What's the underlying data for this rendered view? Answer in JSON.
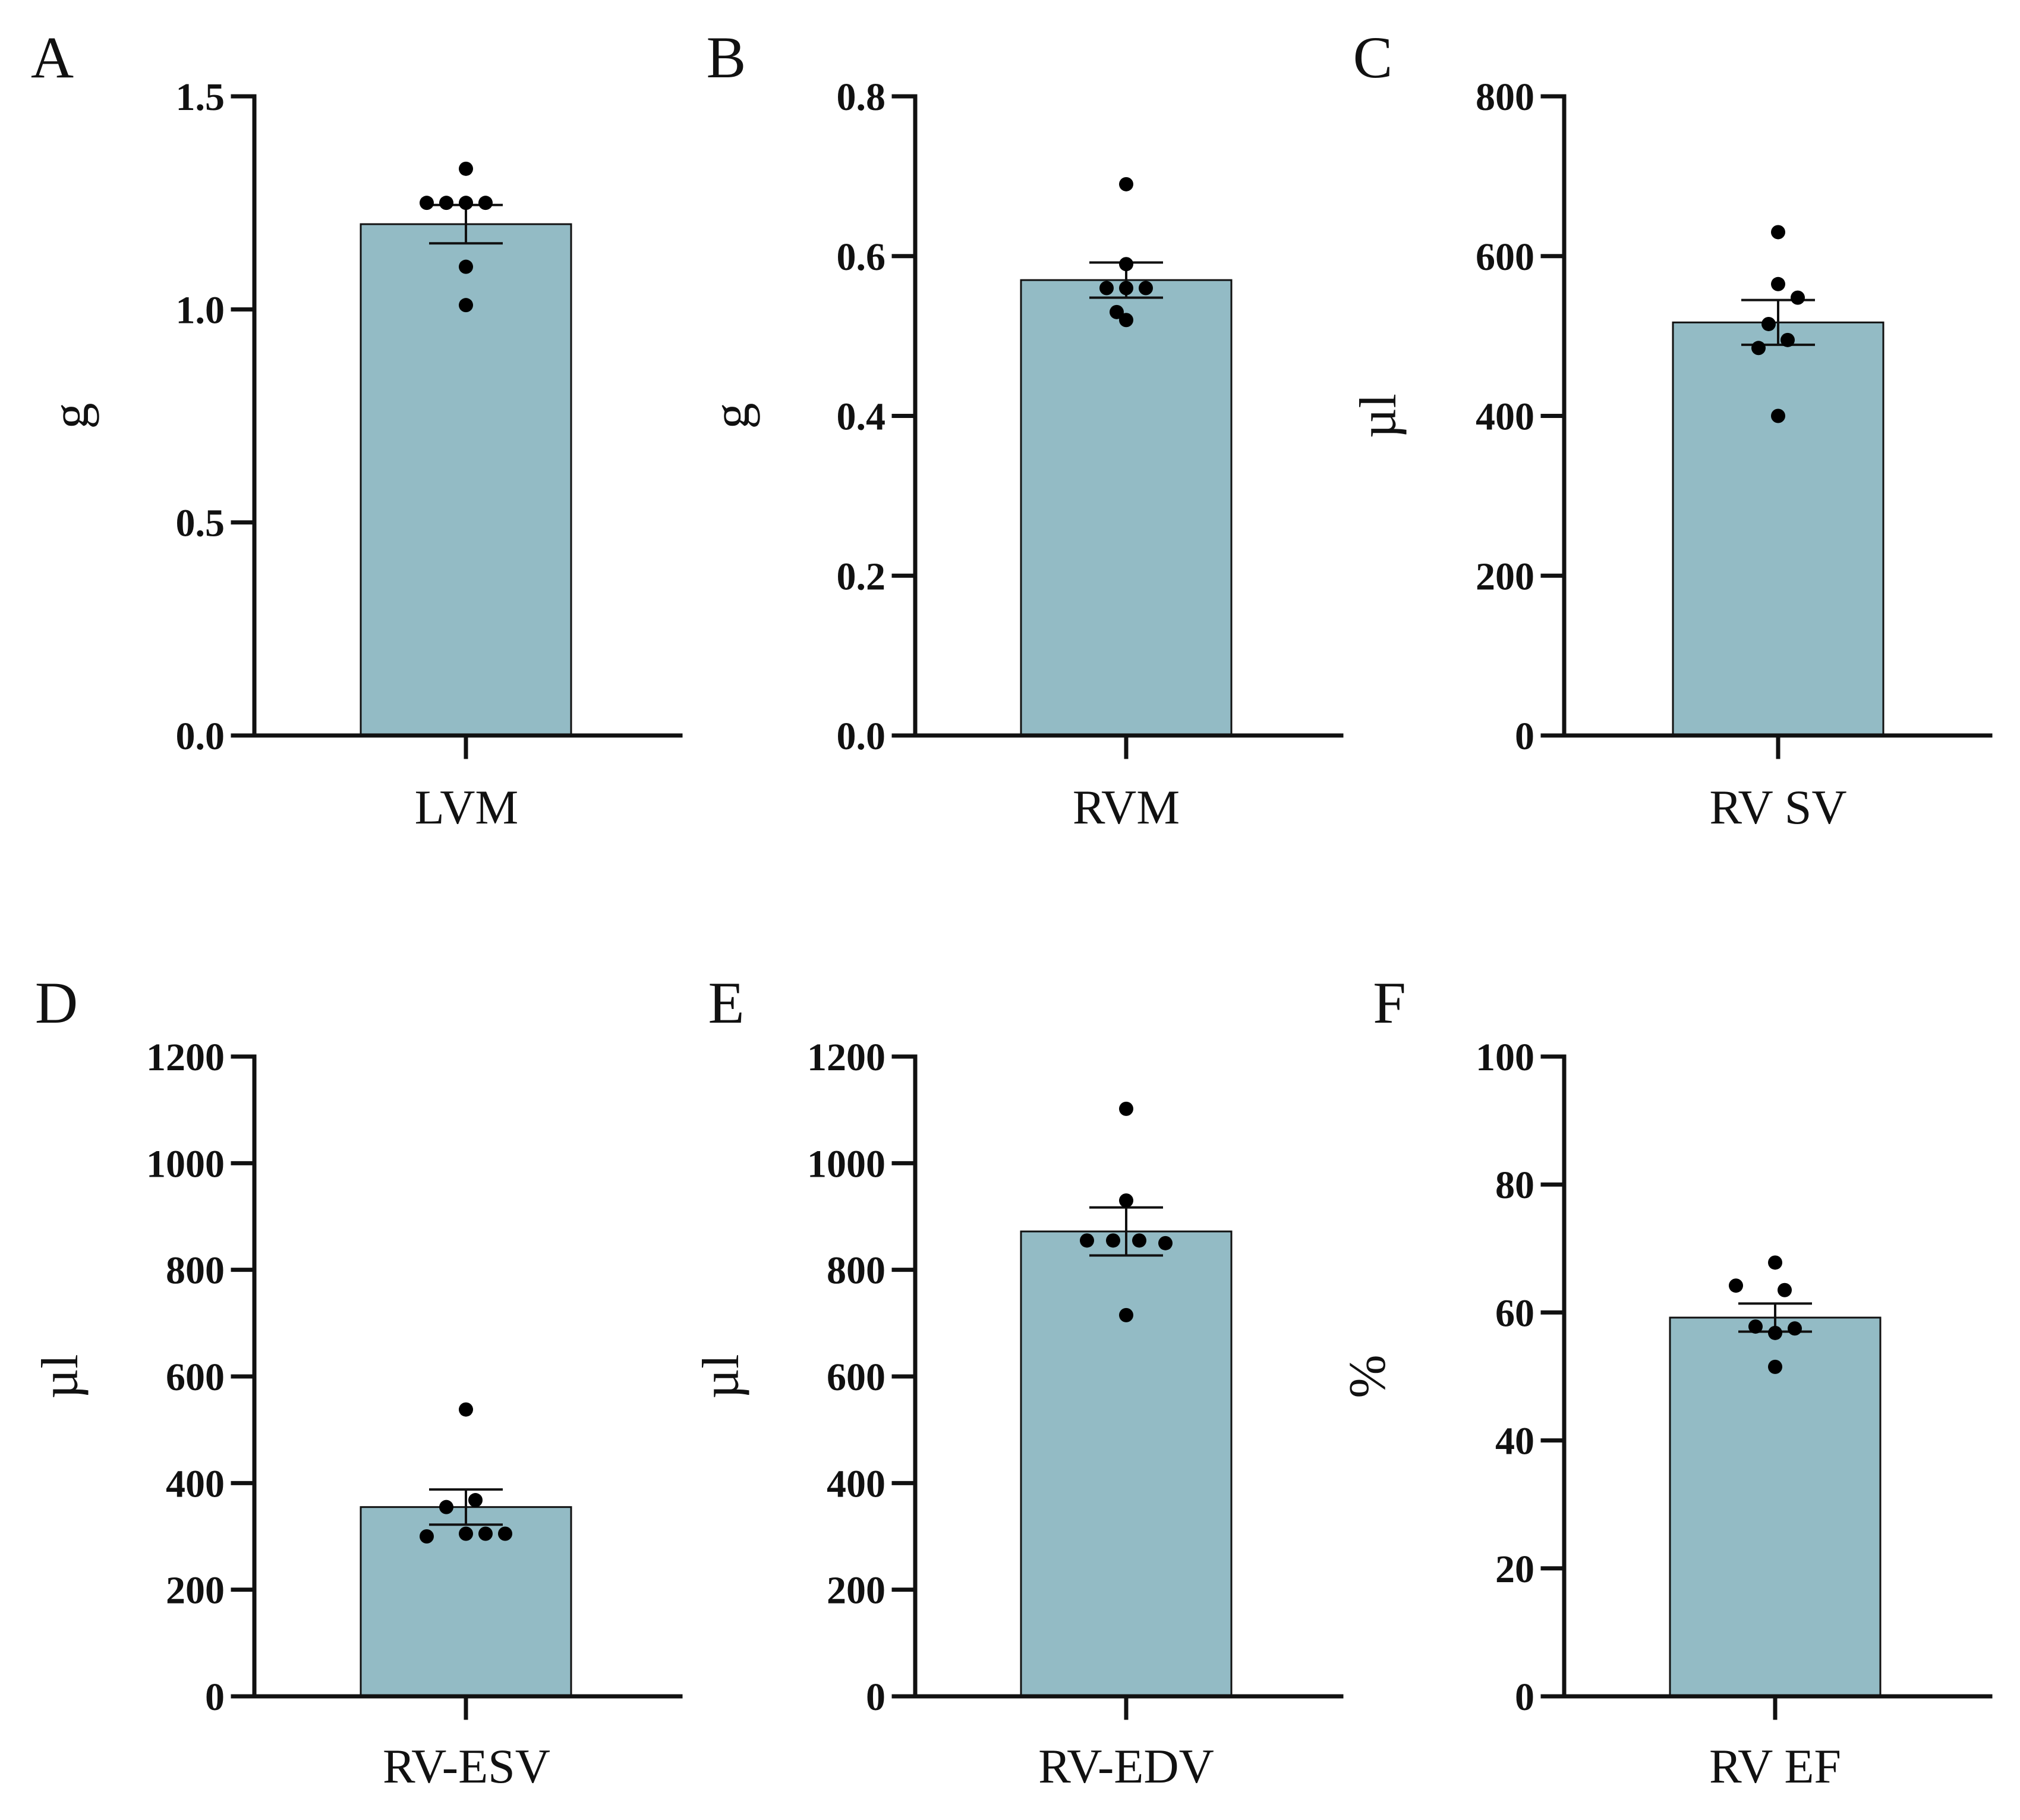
{
  "figure": {
    "bar_color": "#93bbc5",
    "ink_color": "#111111"
  },
  "chart_data": [
    {
      "type": "bar",
      "panel": "A",
      "categories": [
        "LVM"
      ],
      "values": [
        1.2
      ],
      "error": [
        0.045
      ],
      "points": [
        1.33,
        1.25,
        1.25,
        1.25,
        1.25,
        1.1,
        1.01
      ],
      "ylabel": "g",
      "ylim": [
        0,
        1.5
      ],
      "yticks": [
        "0.0",
        "0.5",
        "1.0",
        "1.5"
      ]
    },
    {
      "type": "bar",
      "panel": "B",
      "categories": [
        "RVM"
      ],
      "values": [
        0.57
      ],
      "error": [
        0.022
      ],
      "points": [
        0.69,
        0.59,
        0.56,
        0.56,
        0.56,
        0.53,
        0.52
      ],
      "ylabel": "g",
      "ylim": [
        0,
        0.8
      ],
      "yticks": [
        "0.0",
        "0.2",
        "0.4",
        "0.6",
        "0.8"
      ]
    },
    {
      "type": "bar",
      "panel": "C",
      "categories": [
        "RV SV"
      ],
      "values": [
        517
      ],
      "error": [
        28
      ],
      "points": [
        630,
        565,
        548,
        515,
        495,
        485,
        400
      ],
      "ylabel": "µl",
      "ylim": [
        0,
        800
      ],
      "yticks": [
        "0",
        "200",
        "400",
        "600",
        "800"
      ]
    },
    {
      "type": "bar",
      "panel": "D",
      "categories": [
        "RV-ESV"
      ],
      "values": [
        355
      ],
      "error": [
        33
      ],
      "points": [
        538,
        368,
        355,
        305,
        305,
        305,
        300
      ],
      "ylabel": "µl",
      "ylim": [
        0,
        1200
      ],
      "yticks": [
        "0",
        "200",
        "400",
        "600",
        "800",
        "1000",
        "1200"
      ]
    },
    {
      "type": "bar",
      "panel": "E",
      "categories": [
        "RV-EDV"
      ],
      "values": [
        872
      ],
      "error": [
        45
      ],
      "points": [
        1102,
        930,
        855,
        855,
        855,
        850,
        715
      ],
      "ylabel": "µl",
      "ylim": [
        0,
        1200
      ],
      "yticks": [
        "0",
        "200",
        "400",
        "600",
        "800",
        "1000",
        "1200"
      ]
    },
    {
      "type": "bar",
      "panel": "F",
      "categories": [
        "RV EF"
      ],
      "values": [
        59.2
      ],
      "error": [
        2.2
      ],
      "points": [
        67.8,
        64.2,
        63.5,
        57.8,
        57.5,
        56.8,
        51.5
      ],
      "ylabel": "%",
      "ylim": [
        0,
        100
      ],
      "yticks": [
        "0",
        "20",
        "40",
        "60",
        "80",
        "100"
      ]
    }
  ]
}
